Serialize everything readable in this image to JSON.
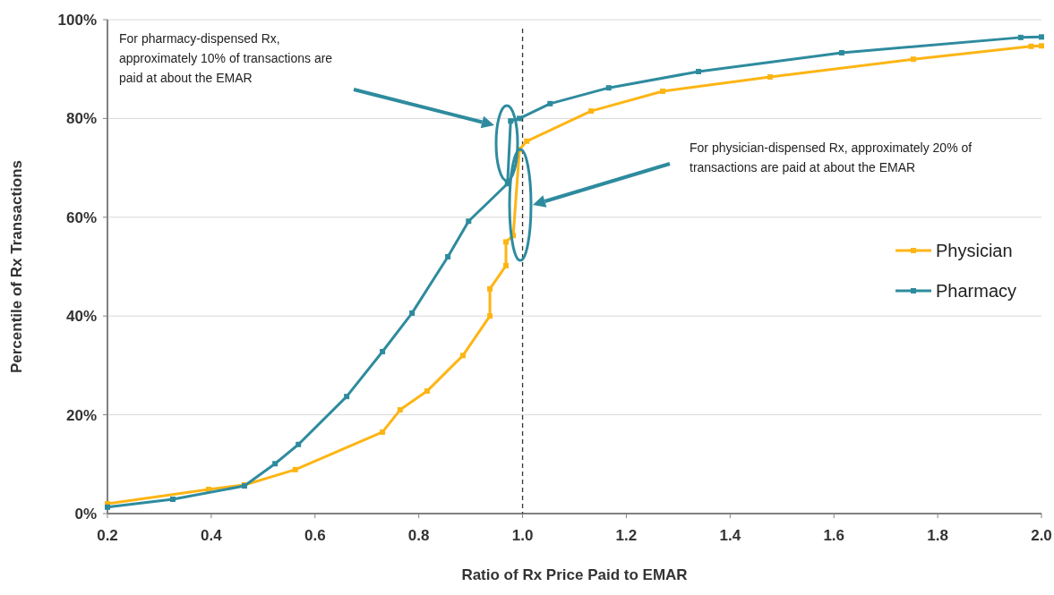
{
  "chart_data": {
    "type": "line",
    "xlabel": "Ratio of Rx Price Paid to EMAR",
    "ylabel": "Percentile of Rx Transactions",
    "xlim": [
      0.2,
      2.0
    ],
    "ylim": [
      0,
      100
    ],
    "xticks": [
      {
        "value": 0.2,
        "label": "0.2"
      },
      {
        "value": 0.4,
        "label": "0.4"
      },
      {
        "value": 0.6,
        "label": "0.6"
      },
      {
        "value": 0.8,
        "label": "0.8"
      },
      {
        "value": 1.0,
        "label": "1.0"
      },
      {
        "value": 1.2,
        "label": "1.2"
      },
      {
        "value": 1.4,
        "label": "1.4"
      },
      {
        "value": 1.6,
        "label": "1.6"
      },
      {
        "value": 1.8,
        "label": "1.8"
      },
      {
        "value": 2.0,
        "label": "2.0"
      }
    ],
    "yticks": [
      {
        "value": 0,
        "label": "0%"
      },
      {
        "value": 20,
        "label": "20%"
      },
      {
        "value": 40,
        "label": "40%"
      },
      {
        "value": 60,
        "label": "60%"
      },
      {
        "value": 80,
        "label": "80%"
      },
      {
        "value": 100,
        "label": "100%"
      }
    ],
    "grid": "y",
    "legend": "right",
    "marker": "square",
    "series": [
      {
        "name": "Physician",
        "color": "#fdb515",
        "x": [
          0.2,
          0.395,
          0.464,
          0.562,
          0.73,
          0.764,
          0.816,
          0.885,
          0.937,
          0.937,
          0.968,
          0.968,
          0.982,
          0.994,
          1.008,
          1.132,
          1.27,
          1.477,
          1.753,
          1.98,
          2.0
        ],
        "values": [
          2,
          4.9,
          5.8,
          8.9,
          16.5,
          21,
          24.8,
          32,
          40,
          45.5,
          50.2,
          55,
          56.3,
          73.7,
          75.4,
          81.5,
          85.5,
          88.4,
          92,
          94.6,
          94.7
        ]
      },
      {
        "name": "Pharmacy",
        "color": "#2e8b9e",
        "x": [
          0.2,
          0.326,
          0.464,
          0.523,
          0.568,
          0.661,
          0.73,
          0.787,
          0.856,
          0.896,
          0.971,
          0.977,
          0.994,
          1.053,
          1.166,
          1.339,
          1.615,
          1.96,
          2.0
        ],
        "values": [
          1.3,
          2.9,
          5.6,
          10.1,
          14,
          23.7,
          32.8,
          40.6,
          52,
          59.2,
          66.8,
          79.5,
          80,
          83,
          86.2,
          89.5,
          93.3,
          96.4,
          96.5
        ]
      }
    ],
    "ref_lines": [
      {
        "axis": "x",
        "value": 1.0,
        "line_style": "dashed",
        "color": "#333333"
      }
    ],
    "annotations": [
      "For pharmacy-dispensed Rx, approximately 10% of transactions are paid at about the EMAR",
      "For physician-dispensed Rx, approximately 20% of transactions are paid at about  the EMAR"
    ]
  }
}
